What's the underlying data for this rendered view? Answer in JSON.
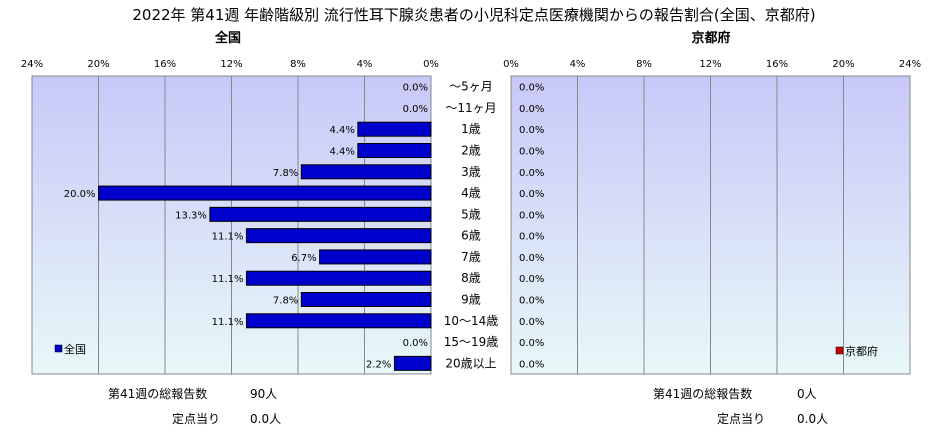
{
  "title": "2022年 第41週 年齢階級別 流行性耳下腺炎患者の小児科定点医療機関からの報告割合(全国、京都府)",
  "colors": {
    "national_bar": "#0000cc",
    "kyoto_bar": "#cc0000",
    "plot_top": "#c8c8f8",
    "plot_bottom": "#e8f8f8"
  },
  "chart_data": [
    {
      "type": "bar",
      "orientation": "horizontal-reversed",
      "subtitle": "全国",
      "categories": [
        "～5ヶ月",
        "～11ヶ月",
        "1歳",
        "2歳",
        "3歳",
        "4歳",
        "5歳",
        "6歳",
        "7歳",
        "8歳",
        "9歳",
        "10～14歳",
        "15～19歳",
        "20歳以上"
      ],
      "series": [
        {
          "name": "全国",
          "values": [
            0.0,
            0.0,
            4.4,
            4.4,
            7.8,
            20.0,
            13.3,
            11.1,
            6.7,
            11.1,
            7.8,
            11.1,
            0.0,
            2.2
          ],
          "labels": [
            "0.0%",
            "0.0%",
            "4.4%",
            "4.4%",
            "7.8%",
            "20.0%",
            "13.3%",
            "11.1%",
            "6.7%",
            "11.1%",
            "7.8%",
            "11.1%",
            "0.0%",
            "2.2%"
          ]
        }
      ],
      "ticks": [
        "24%",
        "20%",
        "16%",
        "12%",
        "8%",
        "4%",
        "0%"
      ],
      "xlim": [
        0,
        24
      ],
      "legend": "bottom-left",
      "grid": true
    },
    {
      "type": "bar",
      "orientation": "horizontal",
      "subtitle": "京都府",
      "categories": [
        "～5ヶ月",
        "～11ヶ月",
        "1歳",
        "2歳",
        "3歳",
        "4歳",
        "5歳",
        "6歳",
        "7歳",
        "8歳",
        "9歳",
        "10～14歳",
        "15～19歳",
        "20歳以上"
      ],
      "series": [
        {
          "name": "京都府",
          "values": [
            0,
            0,
            0,
            0,
            0,
            0,
            0,
            0,
            0,
            0,
            0,
            0,
            0,
            0
          ],
          "labels": [
            "0.0%",
            "0.0%",
            "0.0%",
            "0.0%",
            "0.0%",
            "0.0%",
            "0.0%",
            "0.0%",
            "0.0%",
            "0.0%",
            "0.0%",
            "0.0%",
            "0.0%",
            "0.0%"
          ]
        }
      ],
      "ticks": [
        "0%",
        "4%",
        "8%",
        "12%",
        "16%",
        "20%",
        "24%"
      ],
      "xlim": [
        0,
        24
      ],
      "legend": "bottom-right",
      "grid": true
    }
  ],
  "summary": {
    "national": {
      "total_label": "第41週の総報告数",
      "total_value": "90人",
      "per_label": "定点当り",
      "per_value": "0.0人"
    },
    "kyoto": {
      "total_label": "第41週の総報告数",
      "total_value": "0人",
      "per_label": "定点当り",
      "per_value": "0.0人"
    }
  }
}
